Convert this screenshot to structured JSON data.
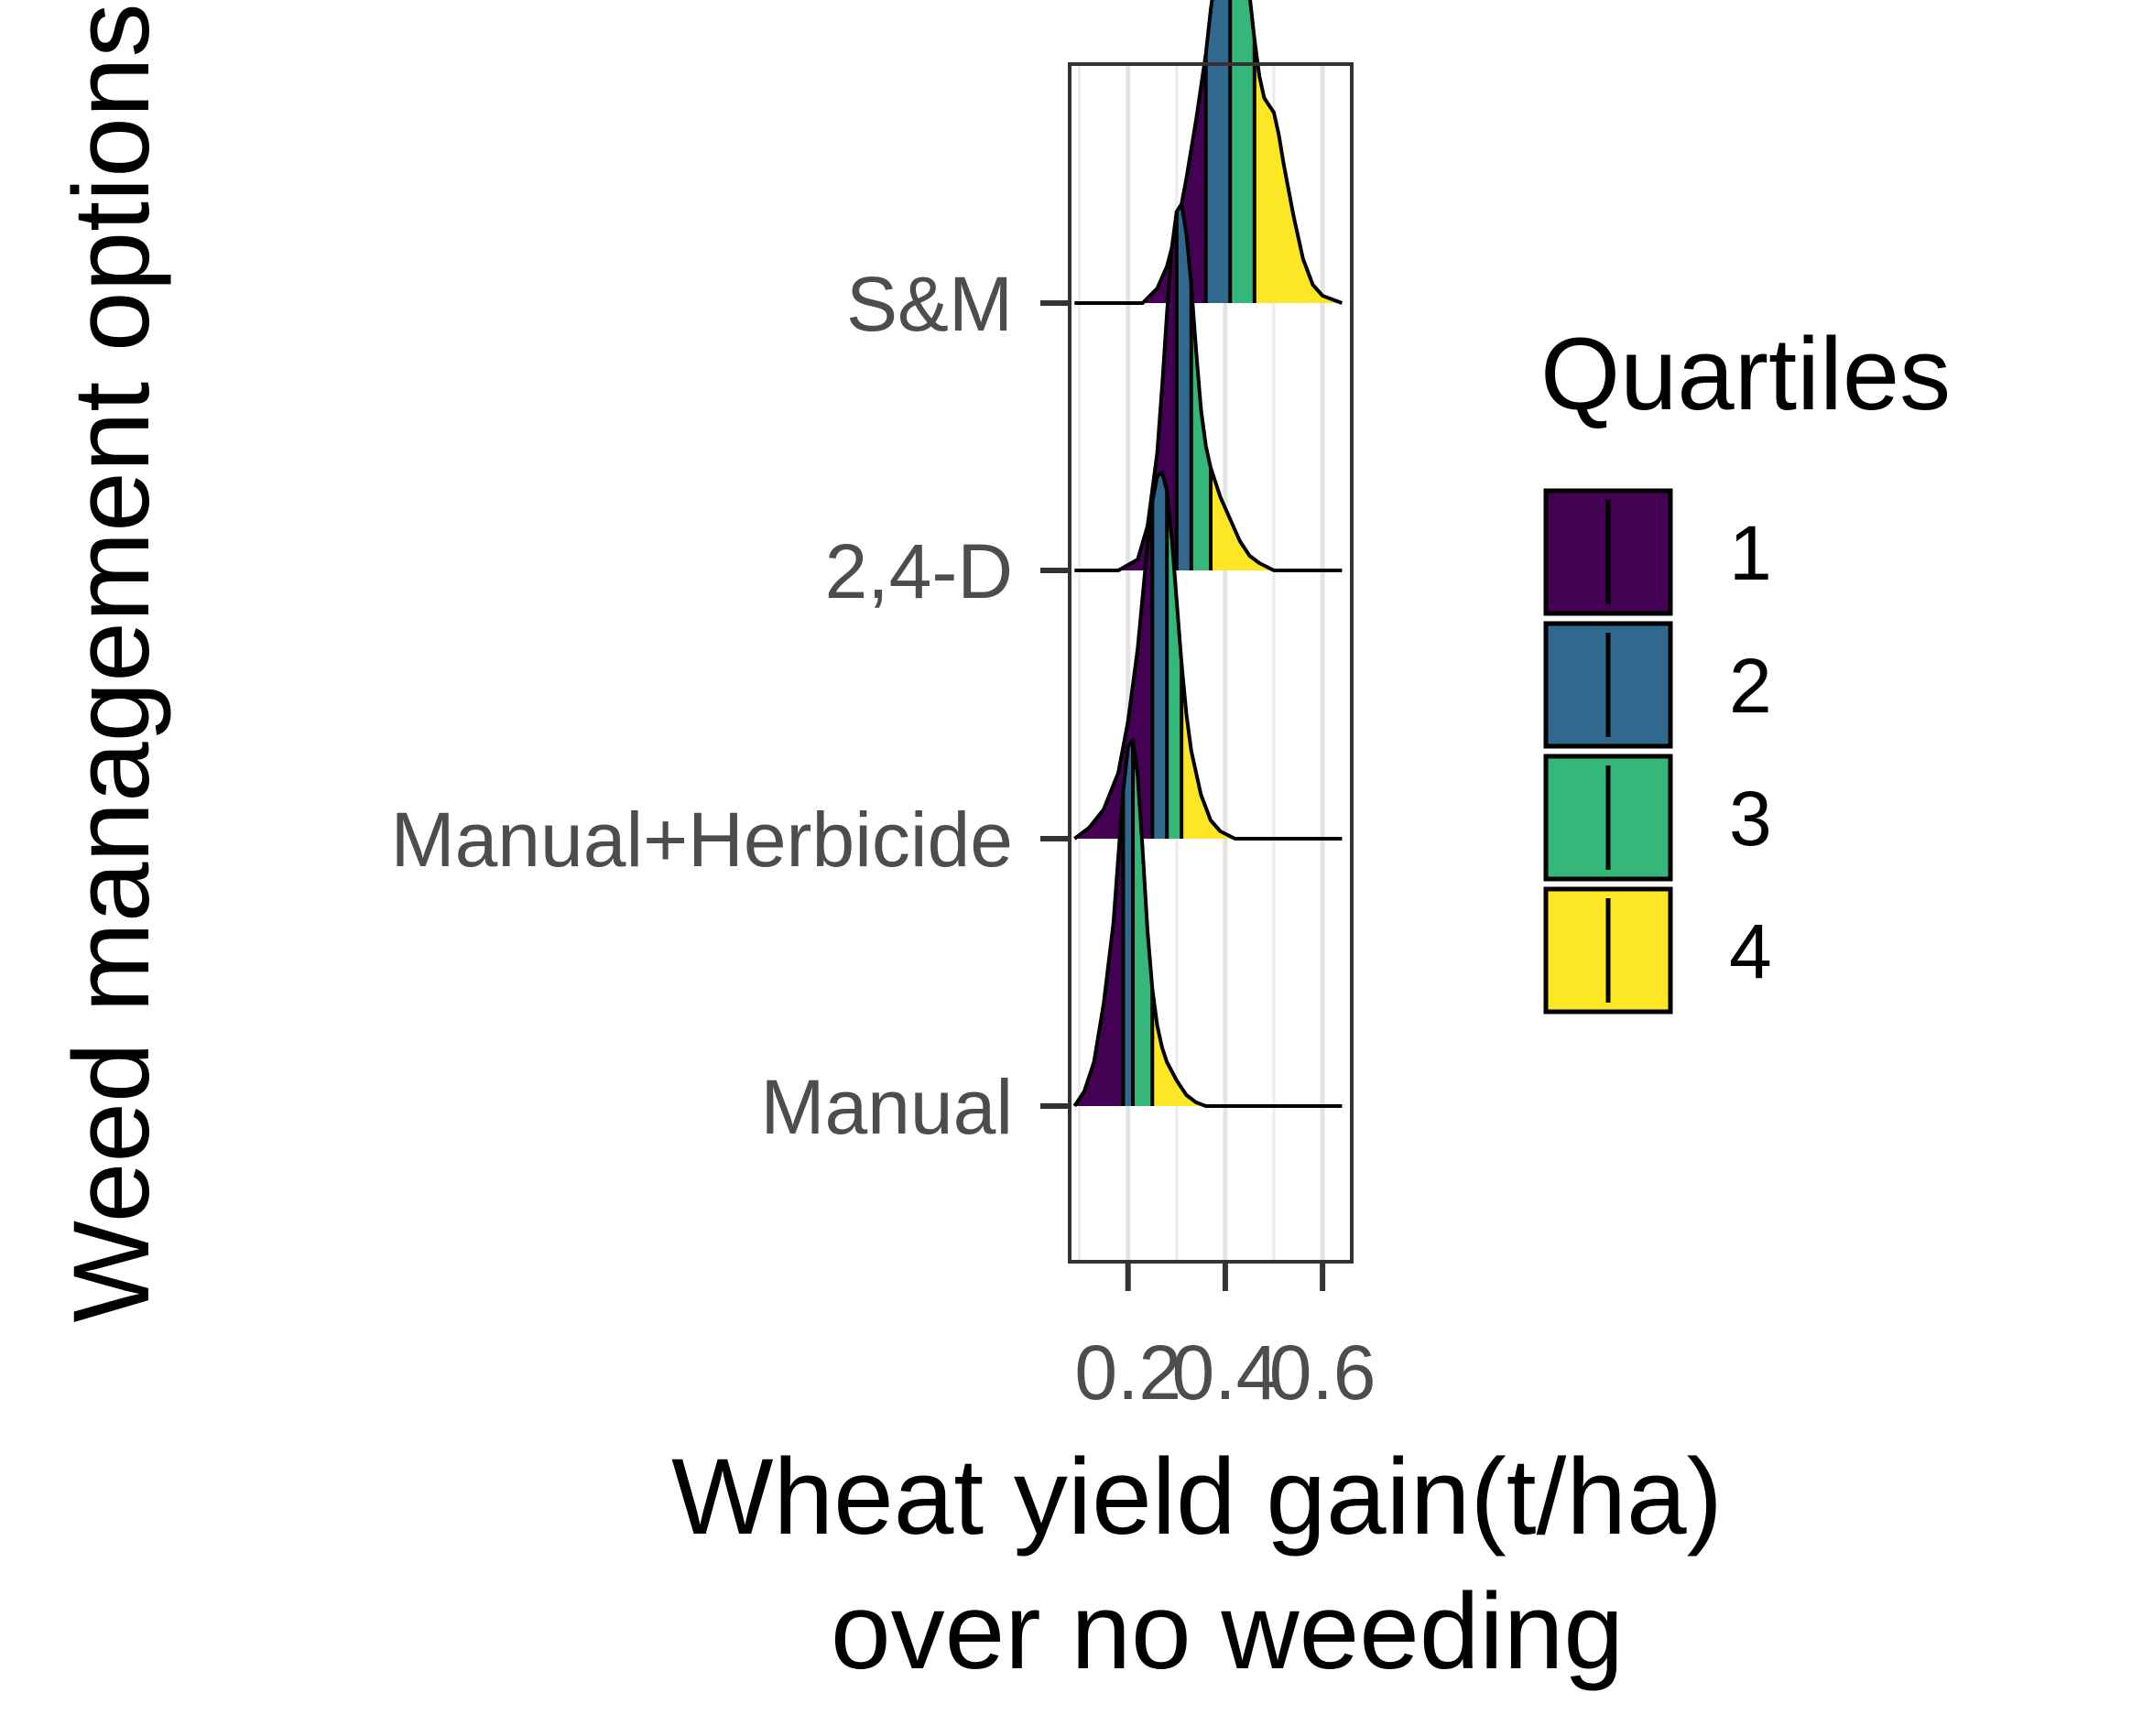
{
  "chart_data": {
    "type": "ridgeline",
    "title": "",
    "xlabel_lines": [
      "Wheat yield gain(t/ha)",
      "over no weeding"
    ],
    "ylabel": "Weed management options",
    "xlim": [
      0.08,
      0.66
    ],
    "x_ticks": [
      0.2,
      0.4,
      0.6
    ],
    "x_tick_labels": [
      "0.2",
      "0.4",
      "0.6"
    ],
    "grid": true,
    "legend": {
      "title": "Quartiles",
      "position": "right",
      "items": [
        {
          "label": "1",
          "color": "#440154"
        },
        {
          "label": "2",
          "color": "#31688E"
        },
        {
          "label": "3",
          "color": "#35B779"
        },
        {
          "label": "4",
          "color": "#FDE725"
        }
      ]
    },
    "categories": [
      "Manual",
      "Manual+Herbicide",
      "2,4-D",
      "S&M"
    ],
    "series": [
      {
        "category": "Manual",
        "x": [
          0.09,
          0.11,
          0.13,
          0.15,
          0.17,
          0.18,
          0.19,
          0.2,
          0.21,
          0.22,
          0.23,
          0.24,
          0.25,
          0.26,
          0.27,
          0.28,
          0.3,
          0.32,
          0.34,
          0.36,
          0.4,
          0.64
        ],
        "density": [
          0.0,
          0.04,
          0.12,
          0.28,
          0.5,
          0.68,
          0.86,
          0.98,
          1.0,
          0.9,
          0.7,
          0.48,
          0.32,
          0.22,
          0.16,
          0.12,
          0.07,
          0.03,
          0.01,
          0.0,
          0.0,
          0.0
        ],
        "quartiles": [
          0.19,
          0.21,
          0.25
        ]
      },
      {
        "category": "Manual+Herbicide",
        "x": [
          0.09,
          0.12,
          0.15,
          0.18,
          0.2,
          0.22,
          0.23,
          0.24,
          0.25,
          0.26,
          0.27,
          0.28,
          0.29,
          0.3,
          0.31,
          0.32,
          0.33,
          0.35,
          0.37,
          0.39,
          0.42,
          0.64
        ],
        "density": [
          0.0,
          0.03,
          0.08,
          0.18,
          0.32,
          0.52,
          0.66,
          0.8,
          0.92,
          0.99,
          1.0,
          0.95,
          0.82,
          0.65,
          0.48,
          0.34,
          0.24,
          0.12,
          0.05,
          0.02,
          0.0,
          0.0
        ],
        "quartiles": [
          0.25,
          0.28,
          0.31
        ]
      },
      {
        "category": "2,4-D",
        "x": [
          0.09,
          0.18,
          0.22,
          0.24,
          0.26,
          0.27,
          0.28,
          0.29,
          0.3,
          0.31,
          0.32,
          0.33,
          0.34,
          0.35,
          0.36,
          0.37,
          0.38,
          0.39,
          0.41,
          0.43,
          0.45,
          0.47,
          0.5,
          0.64
        ],
        "density": [
          0.0,
          0.0,
          0.03,
          0.12,
          0.32,
          0.5,
          0.7,
          0.88,
          0.98,
          1.0,
          0.92,
          0.78,
          0.6,
          0.44,
          0.34,
          0.28,
          0.24,
          0.2,
          0.14,
          0.08,
          0.04,
          0.02,
          0.0,
          0.0
        ],
        "quartiles": [
          0.3,
          0.33,
          0.37
        ]
      },
      {
        "category": "S&M",
        "x": [
          0.09,
          0.23,
          0.26,
          0.28,
          0.3,
          0.32,
          0.34,
          0.36,
          0.37,
          0.38,
          0.39,
          0.4,
          0.41,
          0.42,
          0.43,
          0.44,
          0.45,
          0.46,
          0.47,
          0.48,
          0.49,
          0.5,
          0.51,
          0.52,
          0.54,
          0.56,
          0.58,
          0.6,
          0.64
        ],
        "density": [
          0.0,
          0.0,
          0.04,
          0.1,
          0.2,
          0.34,
          0.5,
          0.68,
          0.8,
          0.9,
          0.97,
          1.0,
          0.98,
          0.96,
          0.97,
          0.93,
          0.84,
          0.72,
          0.62,
          0.56,
          0.54,
          0.52,
          0.46,
          0.38,
          0.24,
          0.12,
          0.05,
          0.02,
          0.0
        ],
        "quartiles": [
          0.36,
          0.41,
          0.46
        ]
      }
    ]
  }
}
